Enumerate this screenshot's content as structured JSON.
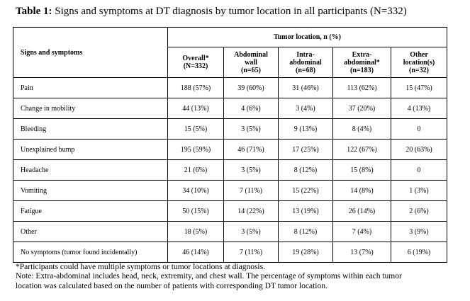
{
  "caption": {
    "label": "Table 1:",
    "text": " Signs and symptoms at DT diagnosis by tumor location in all participants (N=332)"
  },
  "table": {
    "row_header": "Signs and symptoms",
    "group_header": "Tumor location, n (%)",
    "columns": [
      [
        "Overall*",
        "(N=332)"
      ],
      [
        "Abdominal",
        "wall",
        "(n=65)"
      ],
      [
        "Intra-",
        "abdominal",
        "(n=68)"
      ],
      [
        "Extra-",
        "abdominal*",
        "(n=183)"
      ],
      [
        "Other",
        "location(s)",
        "(n=32)"
      ]
    ],
    "rows": [
      {
        "label": "Pain",
        "values": [
          "188 (57%)",
          "39 (60%)",
          "31 (46%)",
          "113 (62%)",
          "15 (47%)"
        ]
      },
      {
        "label": "Change in mobility",
        "values": [
          "44 (13%)",
          "4 (6%)",
          "3 (4%)",
          "37 (20%)",
          "4 (13%)"
        ]
      },
      {
        "label": "Bleeding",
        "values": [
          "15 (5%)",
          "3 (5%)",
          "9 (13%)",
          "8 (4%)",
          "0"
        ]
      },
      {
        "label": "Unexplained bump",
        "values": [
          "195 (59%)",
          "46 (71%)",
          "17 (25%)",
          "122 (67%)",
          "20 (63%)"
        ]
      },
      {
        "label": "Headache",
        "values": [
          "21 (6%)",
          "3 (5%)",
          "8 (12%)",
          "15 (8%)",
          "0"
        ]
      },
      {
        "label": "Vomiting",
        "values": [
          "34 (10%)",
          "7 (11%)",
          "15 (22%)",
          "14 (8%)",
          "1 (3%)"
        ]
      },
      {
        "label": "Fatigue",
        "values": [
          "50 (15%)",
          "14 (22%)",
          "13 (19%)",
          "26 (14%)",
          "2 (6%)"
        ]
      },
      {
        "label": "Other",
        "values": [
          "18 (5%)",
          "3 (5%)",
          "8 (12%)",
          "7 (4%)",
          "3 (9%)"
        ]
      },
      {
        "label": "No symptoms (tumor found incidentally)",
        "values": [
          "46 (14%)",
          "7 (11%)",
          "19 (28%)",
          "13 (7%)",
          "6 (19%)"
        ]
      }
    ]
  },
  "notes": [
    "*Participants could have multiple symptoms or tumor locations at diagnosis.",
    "Note: Extra-abdominal includes head, neck, extremity, and chest wall. The percentage of symptoms within each tumor",
    "location was calculated based on the number of patients with corresponding DT tumor location."
  ]
}
